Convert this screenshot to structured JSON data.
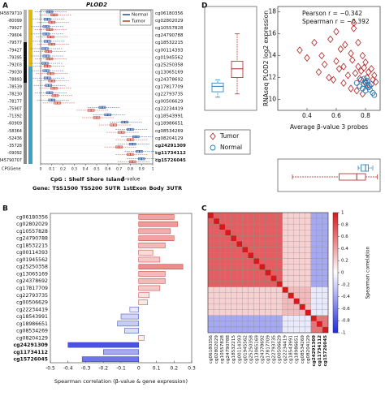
{
  "chart_data": [
    {
      "panel": "A",
      "type": "methylation_boxes",
      "title": "PLOD2",
      "coordinates": [
        "845879710",
        "-80099",
        "-79927",
        "-79604",
        "-79577",
        "-79427",
        "-79395",
        "-79203",
        "-79030",
        "-78893",
        "-78539",
        "-78230",
        "-78177",
        "-75907",
        "-71392",
        "-60909",
        "-58364",
        "-52436",
        "-35728",
        "-09092",
        "845790707"
      ],
      "probes": [
        "cg06180356",
        "cg02802029",
        "cg10557828",
        "cg24790788",
        "cg18532215",
        "cg00114393",
        "cg01945562",
        "cg25250358",
        "cg13065169",
        "cg24378692",
        "cg17817709",
        "cg22793735",
        "cg00506629",
        "cg22234419",
        "cg18543991",
        "cg18986651",
        "cg08534269",
        "cg08204129",
        "cg24291309",
        "cg11734112",
        "cg15726045"
      ],
      "highlighted": [
        18,
        19,
        20
      ],
      "highlight_color": "#1a1adb",
      "series": [
        {
          "name": "Normal",
          "color": "#1f4e9c",
          "values": [
            0.08,
            0.06,
            0.05,
            0.05,
            0.06,
            0.04,
            0.05,
            0.04,
            0.05,
            0.06,
            0.07,
            0.08,
            0.1,
            0.55,
            0.6,
            0.75,
            0.8,
            0.85,
            0.82,
            0.88,
            0.9
          ]
        },
        {
          "name": "Tumor",
          "color": "#c0392b",
          "values": [
            0.12,
            0.1,
            0.08,
            0.09,
            0.1,
            0.07,
            0.08,
            0.06,
            0.09,
            0.1,
            0.12,
            0.13,
            0.15,
            0.45,
            0.5,
            0.65,
            0.72,
            0.8,
            0.7,
            0.8,
            0.82
          ]
        }
      ],
      "xlim": [
        0,
        1
      ],
      "xticks": [
        0,
        0.1,
        0.2,
        0.3,
        0.4,
        0.5,
        0.6,
        0.7,
        0.8,
        0.9,
        1
      ],
      "xlabel": "β-value",
      "annotation_label": "CPGGene",
      "cpg_legend": {
        "label": "CpG :",
        "items": [
          {
            "name": "Shelf",
            "color": "#b5b5b5"
          },
          {
            "name": "Shore",
            "color": "#8a8a8a"
          },
          {
            "name": "Island",
            "color": "#111111"
          }
        ]
      },
      "gene_legend": {
        "label": "Gene:",
        "items": [
          {
            "name": "TSS1500",
            "color": "#e6b800"
          },
          {
            "name": "TSS200",
            "color": "#7030a0"
          },
          {
            "name": "5UTR",
            "color": "#d88a00"
          },
          {
            "name": "1stExon",
            "color": "#e07000"
          },
          {
            "name": "Body",
            "color": "#3fa0c8"
          },
          {
            "name": "3UTR",
            "color": "#c0398d"
          }
        ]
      }
    },
    {
      "panel": "B",
      "type": "barh",
      "categories": [
        "cg06180356",
        "cg02802029",
        "cg10557828",
        "cg24790788",
        "cg18532215",
        "cg00114393",
        "cg01945562",
        "cg25250358",
        "cg13065169",
        "cg24378692",
        "cg17817709",
        "cg22793735",
        "cg00506629",
        "cg22234419",
        "cg18543991",
        "cg18986651",
        "cg08534269",
        "cg08204129",
        "cg24291309",
        "cg11734112",
        "cg15726045"
      ],
      "values": [
        0.2,
        0.22,
        0.18,
        0.2,
        0.15,
        0.08,
        0.12,
        0.25,
        0.15,
        0.15,
        0.12,
        0.06,
        0.05,
        -0.05,
        -0.1,
        -0.12,
        -0.08,
        0.03,
        -0.4,
        -0.2,
        -0.32
      ],
      "highlighted": [
        18,
        19,
        20
      ],
      "highlight_color": "#1a1adb",
      "xlim": [
        -0.5,
        0.3
      ],
      "xticks": [
        -0.5,
        -0.4,
        -0.3,
        -0.2,
        -0.1,
        0,
        0.1,
        0.2,
        0.3
      ],
      "xlabel": "Spearman correlation (β-value & gene expression)"
    },
    {
      "panel": "C",
      "type": "heatmap",
      "categories": [
        "cg06180356",
        "cg02802029",
        "cg10557828",
        "cg24790788",
        "cg18532215",
        "cg00114393",
        "cg01945562",
        "cg25250358",
        "cg13065169",
        "cg24378692",
        "cg17817709",
        "cg22793735",
        "cg00506629",
        "cg22234419",
        "cg18543991",
        "cg18986651",
        "cg08534269",
        "cg08204129",
        "cg24291309",
        "cg11734112",
        "cg15726045"
      ],
      "highlighted": [
        18,
        19,
        20
      ],
      "highlight_color": "#1a1adb",
      "matrix": [
        [
          1,
          0.7,
          0.7,
          0.7,
          0.7,
          0.7,
          0.7,
          0.7,
          0.7,
          0.7,
          0.7,
          0.7,
          0.7,
          0.2,
          0.2,
          0.2,
          0.2,
          0.2,
          -0.4,
          -0.4,
          -0.4
        ],
        [
          0.7,
          1,
          0.7,
          0.7,
          0.7,
          0.7,
          0.7,
          0.7,
          0.7,
          0.7,
          0.7,
          0.7,
          0.7,
          0.2,
          0.2,
          0.2,
          0.2,
          0.2,
          -0.4,
          -0.4,
          -0.4
        ],
        [
          0.7,
          0.7,
          1,
          0.7,
          0.7,
          0.7,
          0.7,
          0.7,
          0.7,
          0.7,
          0.7,
          0.7,
          0.7,
          0.2,
          0.2,
          0.2,
          0.2,
          0.2,
          -0.4,
          -0.4,
          -0.4
        ],
        [
          0.7,
          0.7,
          0.7,
          1,
          0.7,
          0.7,
          0.7,
          0.7,
          0.7,
          0.7,
          0.7,
          0.7,
          0.7,
          0.2,
          0.2,
          0.2,
          0.2,
          0.2,
          -0.4,
          -0.4,
          -0.4
        ],
        [
          0.7,
          0.7,
          0.7,
          0.7,
          1,
          0.7,
          0.7,
          0.7,
          0.7,
          0.7,
          0.7,
          0.7,
          0.7,
          0.2,
          0.2,
          0.2,
          0.2,
          0.2,
          -0.4,
          -0.4,
          -0.4
        ],
        [
          0.7,
          0.7,
          0.7,
          0.7,
          0.7,
          1,
          0.7,
          0.7,
          0.7,
          0.7,
          0.7,
          0.7,
          0.7,
          0.2,
          0.2,
          0.2,
          0.2,
          0.2,
          -0.4,
          -0.4,
          -0.4
        ],
        [
          0.7,
          0.7,
          0.7,
          0.7,
          0.7,
          0.7,
          1,
          0.7,
          0.7,
          0.7,
          0.7,
          0.7,
          0.7,
          0.2,
          0.2,
          0.2,
          0.2,
          0.2,
          -0.4,
          -0.4,
          -0.4
        ],
        [
          0.7,
          0.7,
          0.7,
          0.7,
          0.7,
          0.7,
          0.7,
          1,
          0.7,
          0.7,
          0.7,
          0.7,
          0.7,
          0.2,
          0.2,
          0.2,
          0.2,
          0.2,
          -0.4,
          -0.4,
          -0.4
        ],
        [
          0.7,
          0.7,
          0.7,
          0.7,
          0.7,
          0.7,
          0.7,
          0.7,
          1,
          0.7,
          0.7,
          0.7,
          0.7,
          0.2,
          0.2,
          0.2,
          0.2,
          0.2,
          -0.4,
          -0.4,
          -0.4
        ],
        [
          0.7,
          0.7,
          0.7,
          0.7,
          0.7,
          0.7,
          0.7,
          0.7,
          0.7,
          1,
          0.7,
          0.7,
          0.7,
          0.2,
          0.2,
          0.2,
          0.2,
          0.2,
          -0.4,
          -0.4,
          -0.4
        ],
        [
          0.7,
          0.7,
          0.7,
          0.7,
          0.7,
          0.7,
          0.7,
          0.7,
          0.7,
          0.7,
          1,
          0.7,
          0.7,
          0.2,
          0.2,
          0.2,
          0.2,
          0.2,
          -0.4,
          -0.4,
          -0.4
        ],
        [
          0.7,
          0.7,
          0.7,
          0.7,
          0.7,
          0.7,
          0.7,
          0.7,
          0.7,
          0.7,
          0.7,
          1,
          0.7,
          0.2,
          0.2,
          0.2,
          0.2,
          0.2,
          -0.4,
          -0.4,
          -0.4
        ],
        [
          0.7,
          0.7,
          0.7,
          0.7,
          0.7,
          0.7,
          0.7,
          0.7,
          0.7,
          0.7,
          0.7,
          0.7,
          1,
          0.2,
          0.2,
          0.2,
          0.2,
          0.2,
          -0.4,
          -0.4,
          -0.4
        ],
        [
          0.2,
          0.2,
          0.2,
          0.2,
          0.2,
          0.2,
          0.2,
          0.2,
          0.2,
          0.2,
          0.2,
          0.2,
          0.2,
          1,
          0.3,
          0.3,
          0.3,
          0.3,
          -0.1,
          -0.1,
          -0.1
        ],
        [
          0.2,
          0.2,
          0.2,
          0.2,
          0.2,
          0.2,
          0.2,
          0.2,
          0.2,
          0.2,
          0.2,
          0.2,
          0.2,
          0.3,
          1,
          0.3,
          0.3,
          0.3,
          -0.1,
          -0.1,
          -0.1
        ],
        [
          0.2,
          0.2,
          0.2,
          0.2,
          0.2,
          0.2,
          0.2,
          0.2,
          0.2,
          0.2,
          0.2,
          0.2,
          0.2,
          0.3,
          0.3,
          1,
          0.3,
          0.3,
          -0.1,
          -0.1,
          -0.1
        ],
        [
          0.2,
          0.2,
          0.2,
          0.2,
          0.2,
          0.2,
          0.2,
          0.2,
          0.2,
          0.2,
          0.2,
          0.2,
          0.2,
          0.3,
          0.3,
          0.3,
          1,
          0.3,
          -0.1,
          -0.1,
          -0.1
        ],
        [
          0.2,
          0.2,
          0.2,
          0.2,
          0.2,
          0.2,
          0.2,
          0.2,
          0.2,
          0.2,
          0.2,
          0.2,
          0.2,
          0.3,
          0.3,
          0.3,
          0.3,
          1,
          -0.1,
          -0.1,
          -0.1
        ],
        [
          -0.4,
          -0.4,
          -0.4,
          -0.4,
          -0.4,
          -0.4,
          -0.4,
          -0.4,
          -0.4,
          -0.4,
          -0.4,
          -0.4,
          -0.4,
          -0.1,
          -0.1,
          -0.1,
          -0.1,
          -0.1,
          1,
          0.6,
          0.6
        ],
        [
          -0.4,
          -0.4,
          -0.4,
          -0.4,
          -0.4,
          -0.4,
          -0.4,
          -0.4,
          -0.4,
          -0.4,
          -0.4,
          -0.4,
          -0.4,
          -0.1,
          -0.1,
          -0.1,
          -0.1,
          -0.1,
          0.6,
          1,
          0.6
        ],
        [
          -0.4,
          -0.4,
          -0.4,
          -0.4,
          -0.4,
          -0.4,
          -0.4,
          -0.4,
          -0.4,
          -0.4,
          -0.4,
          -0.4,
          -0.4,
          -0.1,
          -0.1,
          -0.1,
          -0.1,
          -0.1,
          0.6,
          0.6,
          1
        ]
      ],
      "zlim": [
        -1,
        1
      ],
      "colorbar_ticks": [
        -1,
        -0.8,
        -0.6,
        -0.4,
        -0.2,
        0,
        0.2,
        0.4,
        0.6,
        0.8,
        1
      ],
      "colorbar_label": "Spearman correlation"
    },
    {
      "panel": "D",
      "type": "scatter",
      "series": [
        {
          "name": "Tumor",
          "color": "#b22222",
          "marker": "diamond",
          "x": [
            0.35,
            0.4,
            0.45,
            0.48,
            0.5,
            0.52,
            0.55,
            0.56,
            0.58,
            0.6,
            0.6,
            0.62,
            0.63,
            0.65,
            0.65,
            0.66,
            0.68,
            0.7,
            0.7,
            0.71,
            0.72,
            0.73,
            0.74,
            0.75,
            0.75,
            0.76,
            0.77,
            0.78,
            0.78,
            0.79,
            0.8,
            0.8,
            0.81,
            0.82,
            0.83,
            0.84,
            0.85,
            0.86,
            0.87,
            0.72
          ],
          "y": [
            14.5,
            13.8,
            15.2,
            12.5,
            14.0,
            13.2,
            12.0,
            15.5,
            11.8,
            13.5,
            16.2,
            12.8,
            14.6,
            11.5,
            13.0,
            15.0,
            12.2,
            14.2,
            11.0,
            13.6,
            16.5,
            12.4,
            10.8,
            13.0,
            15.2,
            11.9,
            12.6,
            14.0,
            10.5,
            12.9,
            11.5,
            13.4,
            12.0,
            12.5,
            11.2,
            12.8,
            11.8,
            12.2,
            11.6,
            17.0
          ],
          "y_box": [
            10.5,
            12.0,
            12.8,
            13.5,
            16.0
          ],
          "x_box": [
            0.3,
            0.62,
            0.74,
            0.8,
            0.88
          ]
        },
        {
          "name": "Normal",
          "color": "#1f77b4",
          "marker": "circle",
          "x": [
            0.74,
            0.76,
            0.77,
            0.78,
            0.79,
            0.8,
            0.8,
            0.81,
            0.82,
            0.83,
            0.84,
            0.85,
            0.86,
            0.79,
            0.81
          ],
          "y": [
            11.5,
            11.2,
            11.8,
            11.0,
            11.4,
            10.8,
            11.6,
            11.3,
            11.1,
            10.9,
            11.4,
            10.6,
            10.4,
            11.9,
            11.7
          ],
          "y_box": [
            10.2,
            10.7,
            11.2,
            11.5,
            11.8
          ],
          "x_box": [
            0.75,
            0.77,
            0.8,
            0.82,
            0.85
          ]
        }
      ],
      "xlim": [
        0.2,
        0.9
      ],
      "xticks": [
        0.4,
        0.6,
        0.8
      ],
      "ylim": [
        9,
        18.5
      ],
      "yticks": [
        10,
        12,
        14,
        16,
        18
      ],
      "xlabel": "Average β-value 3 probes",
      "ylabel": "RNAseq PLOD2 log2 expression",
      "annotations": [
        "Pearson r = −0.342",
        "Spearman r = −0.392"
      ],
      "legend": "lower left"
    }
  ]
}
